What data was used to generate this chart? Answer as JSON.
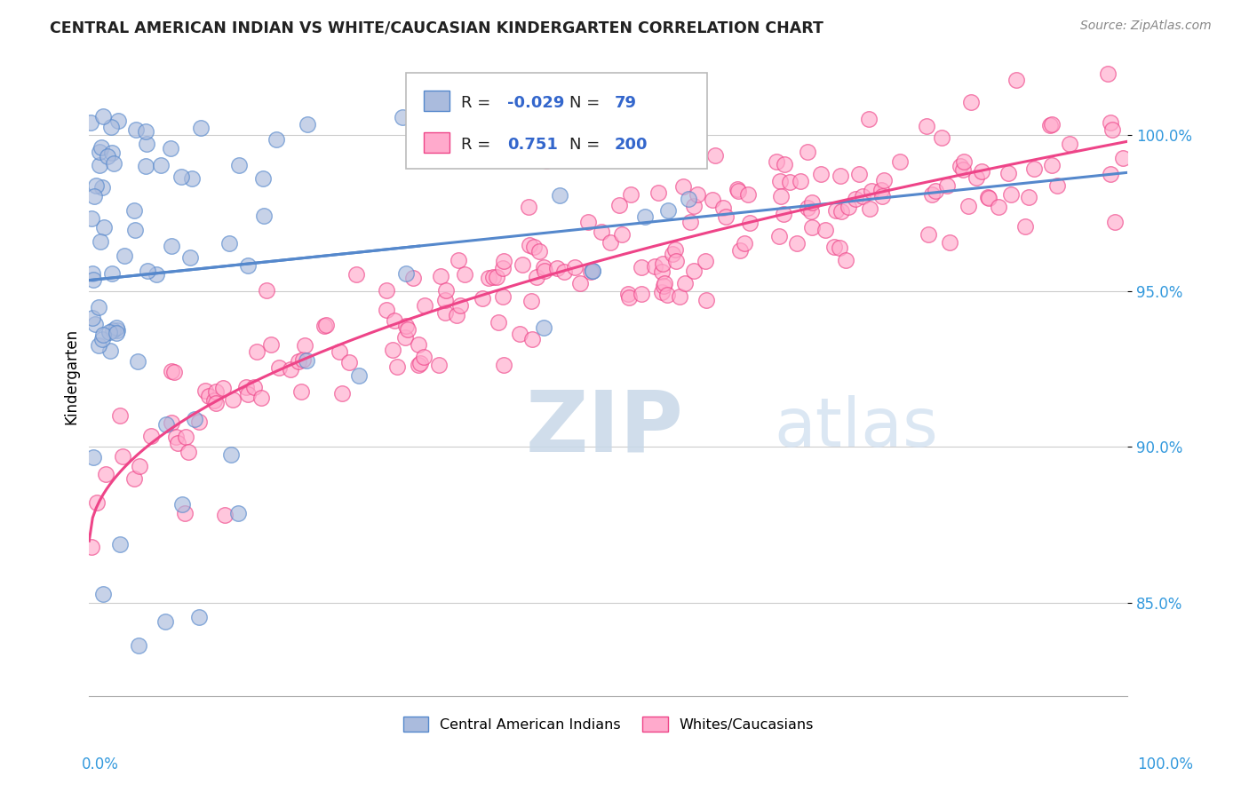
{
  "title": "CENTRAL AMERICAN INDIAN VS WHITE/CAUCASIAN KINDERGARTEN CORRELATION CHART",
  "source": "Source: ZipAtlas.com",
  "ylabel": "Kindergarten",
  "xlim": [
    0.0,
    100.0
  ],
  "ylim": [
    82.0,
    102.5
  ],
  "yticks": [
    85.0,
    90.0,
    95.0,
    100.0
  ],
  "legend_blue_R": "-0.029",
  "legend_blue_N": "79",
  "legend_pink_R": "0.751",
  "legend_pink_N": "200",
  "blue_color": "#5588cc",
  "pink_color": "#ee4488",
  "blue_fill": "#aabbdd",
  "pink_fill": "#ffaacc",
  "blue_N": 79,
  "pink_N": 200,
  "blue_R": -0.029,
  "pink_R": 0.751,
  "blue_seed": 42,
  "pink_seed": 123
}
